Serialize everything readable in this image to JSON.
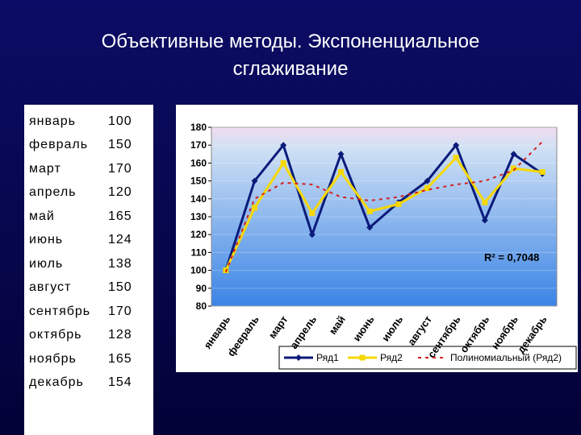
{
  "title": [
    "Объективные методы. Экспоненциальное",
    "сглаживание"
  ],
  "chart_data": {
    "type": "line",
    "categories": [
      "январь",
      "февраль",
      "март",
      "апрель",
      "май",
      "июнь",
      "июль",
      "август",
      "сентябрь",
      "октябрь",
      "ноябрь",
      "декабрь"
    ],
    "series": [
      {
        "name": "Ряд1",
        "color": "#0a1a7a",
        "marker": "diamond",
        "values": [
          100,
          150,
          170,
          120,
          165,
          124,
          138,
          150,
          170,
          128,
          165,
          154
        ]
      },
      {
        "name": "Ряд2",
        "color": "#f5d800",
        "marker": "square",
        "values": [
          100,
          135,
          160,
          132,
          155,
          133,
          137,
          146,
          163,
          138,
          157,
          155
        ]
      },
      {
        "name": "Полиномиальный (Ряд2)",
        "color": "#d42020",
        "dashed": true,
        "values": [
          99,
          140,
          149,
          148,
          141,
          139,
          141,
          145,
          148,
          150,
          156,
          172
        ]
      }
    ],
    "annotation": "R² = 0,7048",
    "ylim": [
      80,
      180
    ],
    "yticks": [
      80,
      90,
      100,
      110,
      120,
      130,
      140,
      150,
      160,
      170,
      180
    ],
    "grid": true
  }
}
